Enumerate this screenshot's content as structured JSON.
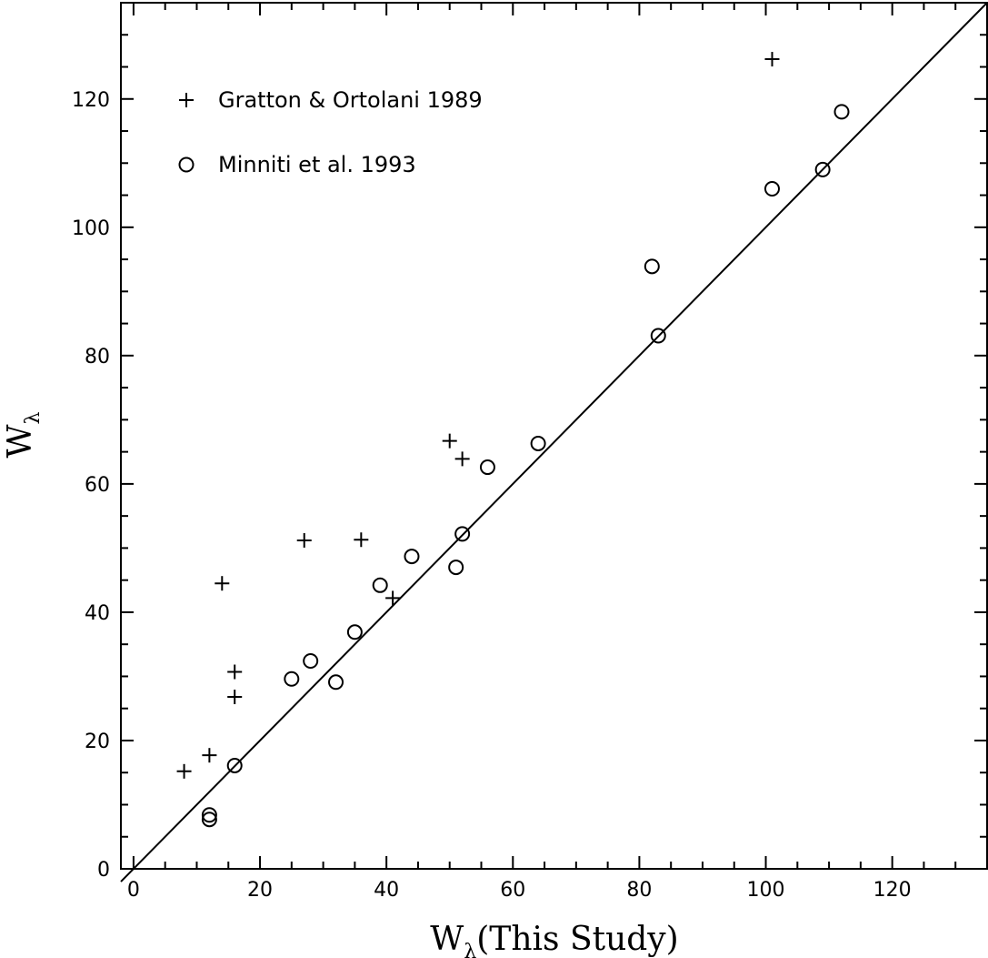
{
  "chart_data": {
    "type": "scatter",
    "title": "",
    "xlabel_main": "W",
    "xlabel_sub": "λ",
    "xlabel_rest": "(This Study)",
    "ylabel_main": "W",
    "ylabel_sub": "λ",
    "xlim": [
      -2,
      135
    ],
    "ylim": [
      0,
      135
    ],
    "x_ticks": [
      0,
      20,
      40,
      60,
      80,
      100,
      120
    ],
    "y_ticks": [
      0,
      20,
      40,
      60,
      80,
      100,
      120
    ],
    "minor_tick_step": 5,
    "grid": false,
    "legend_position": "top-left",
    "reference_line": {
      "from": [
        -2,
        -2
      ],
      "to": [
        135,
        135
      ],
      "label": ""
    },
    "series": [
      {
        "name": "Gratton & Ortolani 1989",
        "marker": "plus",
        "points": [
          [
            8,
            15.2
          ],
          [
            12,
            17.7
          ],
          [
            14,
            44.5
          ],
          [
            16,
            30.7
          ],
          [
            16,
            26.8
          ],
          [
            27,
            51.2
          ],
          [
            36,
            51.3
          ],
          [
            41,
            42.2
          ],
          [
            50,
            66.7
          ],
          [
            52,
            63.9
          ],
          [
            101,
            126.2
          ]
        ]
      },
      {
        "name": "Minniti et al. 1993",
        "marker": "circle",
        "points": [
          [
            12,
            8.4
          ],
          [
            12,
            7.7
          ],
          [
            16,
            16.1
          ],
          [
            25,
            29.6
          ],
          [
            28,
            32.4
          ],
          [
            32,
            29.1
          ],
          [
            35,
            36.9
          ],
          [
            39,
            44.2
          ],
          [
            44,
            48.7
          ],
          [
            51,
            47.0
          ],
          [
            52,
            52.2
          ],
          [
            56,
            62.6
          ],
          [
            64,
            66.3
          ],
          [
            82,
            93.9
          ],
          [
            83,
            83.1
          ],
          [
            101,
            106.0
          ],
          [
            109,
            109.0
          ],
          [
            112,
            118.0
          ]
        ]
      }
    ]
  }
}
